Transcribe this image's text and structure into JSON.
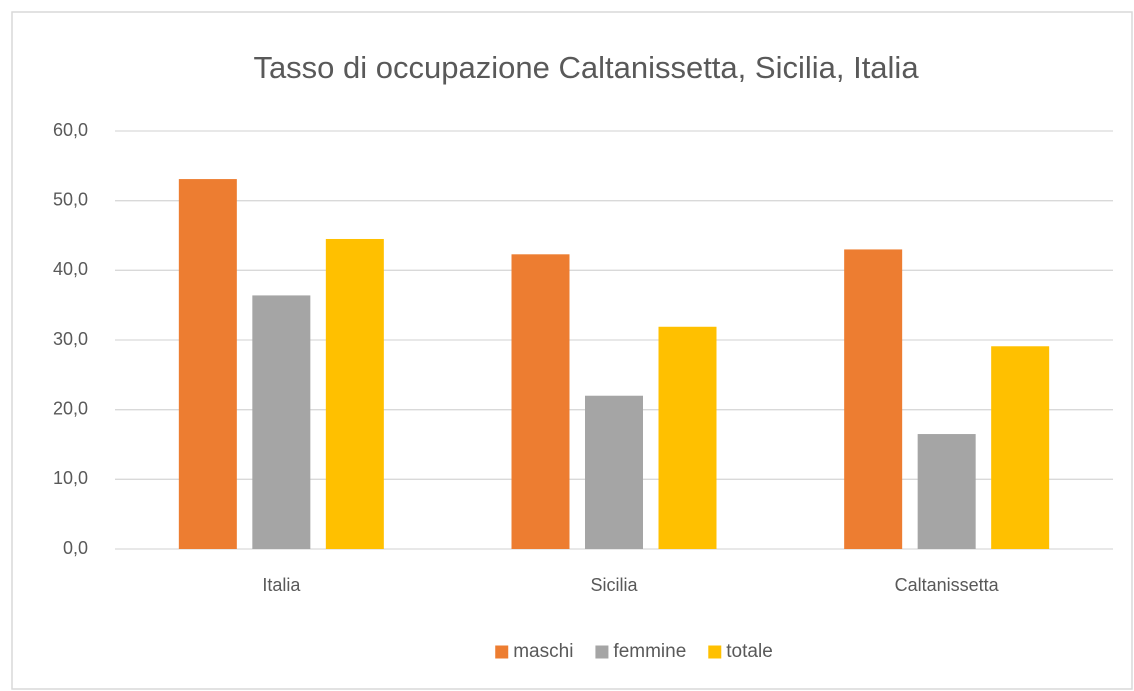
{
  "chart_data": {
    "type": "bar",
    "title": "Tasso di occupazione Caltanissetta, Sicilia, Italia",
    "categories": [
      "Italia",
      "Sicilia",
      "Caltanissetta"
    ],
    "series": [
      {
        "name": "maschi",
        "color": "#ED7D31",
        "values": [
          53.1,
          42.3,
          43.0
        ]
      },
      {
        "name": "femmine",
        "color": "#A5A5A5",
        "values": [
          36.4,
          22.0,
          16.5
        ]
      },
      {
        "name": "totale",
        "color": "#FFC000",
        "values": [
          44.5,
          31.9,
          29.1
        ]
      }
    ],
    "ylim": [
      0,
      60
    ],
    "yticks": [
      {
        "value": 0,
        "label": "0,0"
      },
      {
        "value": 10,
        "label": "10,0"
      },
      {
        "value": 20,
        "label": "20,0"
      },
      {
        "value": 30,
        "label": "30,0"
      },
      {
        "value": 40,
        "label": "40,0"
      },
      {
        "value": 50,
        "label": "50,0"
      },
      {
        "value": 60,
        "label": "60,0"
      }
    ],
    "grid": true,
    "legend": "bottom"
  }
}
